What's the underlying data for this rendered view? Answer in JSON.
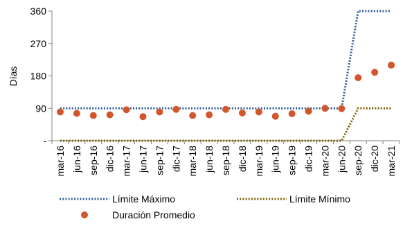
{
  "chart_data": {
    "type": "line",
    "ylabel": "Días",
    "xlabel": "",
    "ylim": [
      0,
      360
    ],
    "yticks": [
      {
        "value": 0,
        "label": "-"
      },
      {
        "value": 90,
        "label": "90"
      },
      {
        "value": 180,
        "label": "180"
      },
      {
        "value": 270,
        "label": "270"
      },
      {
        "value": 360,
        "label": "360"
      }
    ],
    "categories": [
      "mar-16",
      "jun-16",
      "sep-16",
      "dic-16",
      "mar-17",
      "jun-17",
      "sep-17",
      "dic-17",
      "mar-18",
      "jun-18",
      "sep-18",
      "dic-18",
      "mar-19",
      "jun-19",
      "sep-19",
      "dic-19",
      "mar-20",
      "jun-20",
      "sep-20",
      "dic-20",
      "mar-21"
    ],
    "grid": false,
    "legend_position": "bottom",
    "series": [
      {
        "name": "Límite Máximo",
        "style": "dotted-line",
        "color": "#2E5C9A",
        "values": [
          90,
          90,
          90,
          90,
          90,
          90,
          90,
          90,
          90,
          90,
          90,
          90,
          90,
          90,
          90,
          90,
          90,
          90,
          360,
          360,
          360
        ]
      },
      {
        "name": "Límite Mínimo",
        "style": "dotted-line",
        "color": "#7F6000",
        "values": [
          0,
          0,
          0,
          0,
          0,
          0,
          0,
          0,
          0,
          0,
          0,
          0,
          0,
          0,
          0,
          0,
          0,
          0,
          90,
          90,
          90
        ]
      },
      {
        "name": "Duración Promedio",
        "style": "markers",
        "color": "#D2562B",
        "values": [
          80,
          76,
          70,
          72,
          86,
          67,
          80,
          87,
          70,
          72,
          87,
          77,
          80,
          68,
          75,
          82,
          90,
          89,
          175,
          190,
          210
        ]
      }
    ]
  }
}
